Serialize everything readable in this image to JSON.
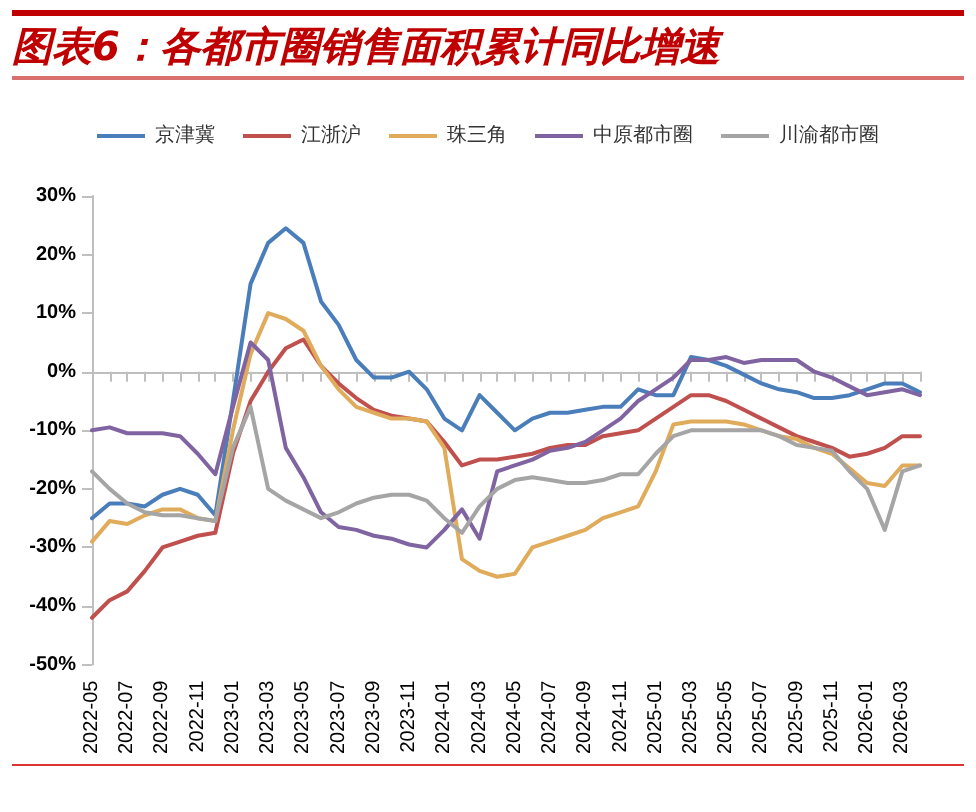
{
  "chart_data": {
    "type": "line",
    "title": "图表6：各都市圈销售面积累计同比增速",
    "categories": [
      "2022-05",
      null,
      "2022-07",
      null,
      "2022-09",
      null,
      "2022-11",
      null,
      "2023-01",
      null,
      "2023-03",
      null,
      "2023-05",
      null,
      "2023-07",
      null,
      "2023-09",
      null,
      "2023-11",
      null,
      "2024-01",
      null,
      "2024-03",
      null,
      "2024-05",
      null,
      "2024-07",
      null,
      "2024-09",
      null,
      "2024-11",
      null,
      "2025-01",
      null,
      "2025-03",
      null,
      "2025-05",
      null,
      "2025-07",
      null,
      "2025-09",
      null,
      "2025-11",
      null,
      "2026-01",
      null,
      "2026-03",
      null
    ],
    "series": [
      {
        "name": "京津冀",
        "color": "#4a7ebb",
        "values": [
          -25,
          -22.5,
          -22.5,
          -23,
          -21,
          -20,
          -21,
          -24.5,
          -5,
          15,
          22,
          24.5,
          22,
          12,
          8,
          2,
          -1,
          -1,
          0,
          -3,
          -8,
          -10,
          -4,
          -7,
          -10,
          -8,
          -7,
          -7,
          -6.5,
          -6,
          -6,
          -3,
          -4,
          -4,
          2.5,
          2,
          1,
          -0.5,
          -2,
          -3,
          -3.5,
          -4.5,
          -4.5,
          -4,
          -3,
          -2,
          -2,
          -3.5
        ]
      },
      {
        "name": "江浙沪",
        "color": "#c0504d",
        "values": [
          -42,
          -39,
          -37.5,
          -34,
          -30,
          -29,
          -28,
          -27.5,
          -14,
          -5,
          0,
          4,
          5.5,
          1,
          -2,
          -4.5,
          -6.5,
          -7.5,
          -8,
          -8.5,
          -12,
          -16,
          -15,
          -15,
          -14.5,
          -14,
          -13,
          -12.5,
          -12.5,
          -11,
          -10.5,
          -10,
          -8,
          -6,
          -4,
          -4,
          -5,
          -6.5,
          -8,
          -9.5,
          -11,
          -12,
          -13,
          -14.5,
          -14,
          -13,
          -11,
          -11
        ]
      },
      {
        "name": "珠三角",
        "color": "#e0ac5c",
        "values": [
          -29,
          -25.5,
          -26,
          -24.5,
          -23.5,
          -23.5,
          -25,
          -25.5,
          -10,
          3,
          10,
          9,
          7,
          1,
          -3,
          -6,
          -7,
          -8,
          -8,
          -8.5,
          -13,
          -32,
          -34,
          -35,
          -34.5,
          -30,
          -29,
          -28,
          -27,
          -25,
          -24,
          -23,
          -17,
          -9,
          -8.5,
          -8.5,
          -8.5,
          -9,
          -10,
          -11,
          -11.5,
          -13,
          -14,
          -16.5,
          -19,
          -19.5,
          -16,
          -16
        ]
      },
      {
        "name": "中原都市圈",
        "color": "#8064a2",
        "values": [
          -10,
          -9.5,
          -10.5,
          -10.5,
          -10.5,
          -11,
          -14,
          -17.5,
          -6,
          5,
          2,
          -13,
          -18,
          -24,
          -26.5,
          -27,
          -28,
          -28.5,
          -29.5,
          -30,
          -27,
          -23.5,
          -28.5,
          -17,
          -16,
          -15,
          -13.5,
          -13,
          -12,
          -10,
          -8,
          -5,
          -3,
          -1,
          2,
          2,
          2.5,
          1.5,
          2,
          2,
          2,
          0,
          -1,
          -2.5,
          -4,
          -3.5,
          -3,
          -4
        ]
      },
      {
        "name": "川渝都市圈",
        "color": "#a5a5a5",
        "values": [
          -17,
          -20,
          -22.5,
          -24,
          -24.5,
          -24.5,
          -25,
          -25.5,
          -13,
          -6,
          -20,
          -22,
          -23.5,
          -25,
          -24,
          -22.5,
          -21.5,
          -21,
          -21,
          -22,
          -25,
          -27.5,
          -23,
          -20,
          -18.5,
          -18,
          -18.5,
          -19,
          -19,
          -18.5,
          -17.5,
          -17.5,
          -14,
          -11,
          -10,
          -10,
          -10,
          -10,
          -10,
          -11,
          -12.5,
          -13,
          -13.5,
          -17,
          -20,
          -27,
          -17,
          -16
        ]
      }
    ],
    "ylim": [
      -50,
      30
    ],
    "yticks": [
      {
        "value": -50,
        "label": "-50%"
      },
      {
        "value": -40,
        "label": "-40%"
      },
      {
        "value": -30,
        "label": "-30%"
      },
      {
        "value": -20,
        "label": "-20%"
      },
      {
        "value": -10,
        "label": "-10%"
      },
      {
        "value": 0,
        "label": "0%"
      },
      {
        "value": 10,
        "label": "10%"
      },
      {
        "value": 20,
        "label": "20%"
      },
      {
        "value": 30,
        "label": "30%"
      }
    ],
    "legend": "top",
    "marker": "none",
    "line_style": "solid"
  }
}
